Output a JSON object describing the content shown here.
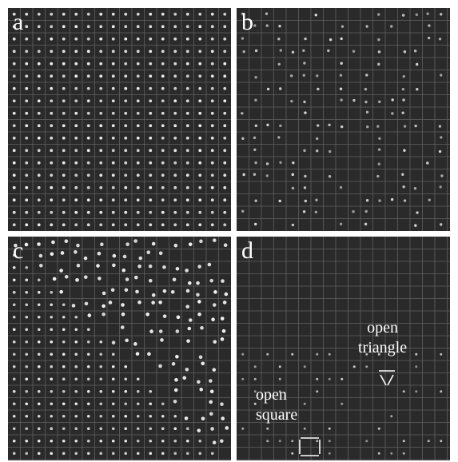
{
  "panels": [
    {
      "id": "a",
      "label": "a"
    },
    {
      "id": "b",
      "label": "b"
    },
    {
      "id": "c",
      "label": "c"
    },
    {
      "id": "d",
      "label": "d"
    }
  ],
  "annotations": {
    "triangle_line1": "open",
    "triangle_line2": "triangle",
    "square_line1": "open",
    "square_line2": "square"
  },
  "colors": {
    "background": "#2a2a2a",
    "grid": "#8c8c8c",
    "spot": "#f2f2f2",
    "text": "#ffffff",
    "separator": "#ffffff"
  }
}
